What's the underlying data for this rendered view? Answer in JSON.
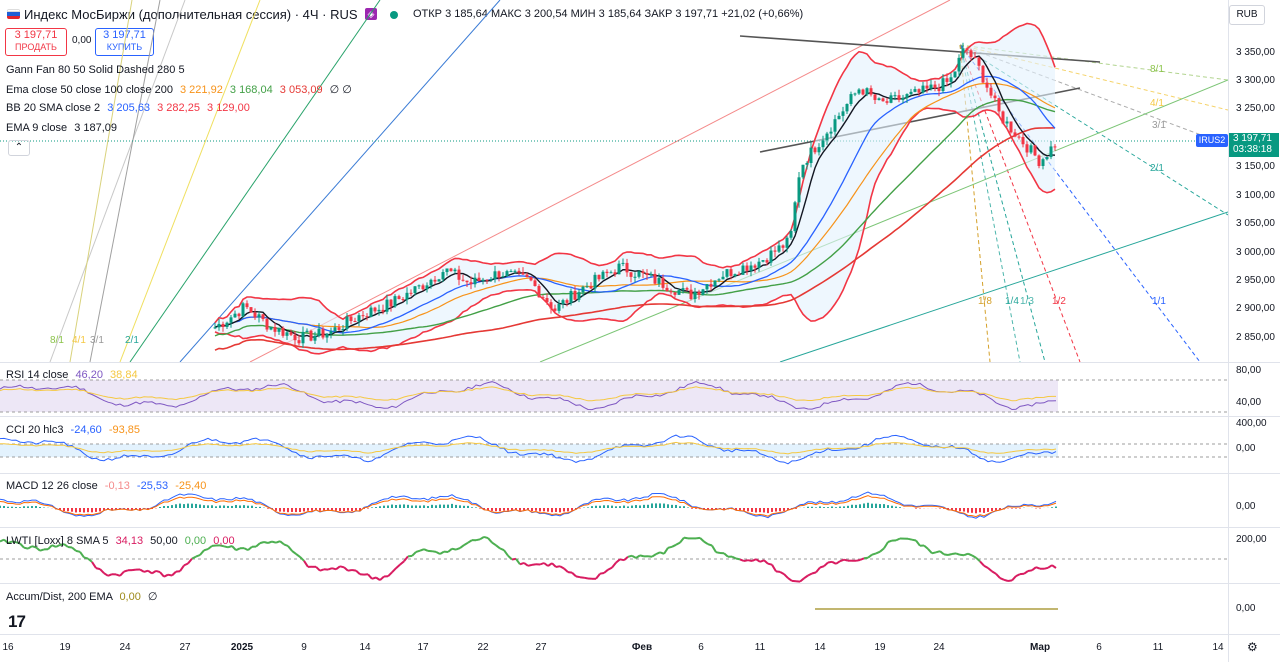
{
  "header": {
    "title": "Индекс МосБиржи (дополнительная сессия) · 4Ч · RUS",
    "ohlc": "ОТКР 3 185,64  МАКС 3 200,54  МИН 3 185,64  ЗАКР 3 197,71 +21,02 (+0,66%)",
    "currency": "RUB"
  },
  "trade": {
    "sell_price": "3 197,71",
    "sell_label": "ПРОДАТЬ",
    "spread": "0,00",
    "buy_price": "3 197,71",
    "buy_label": "КУПИТЬ"
  },
  "indicators": {
    "gann": "Gann Fan 80 50 Solid Dashed 280 5",
    "ema_label": "Ema close 50 close 100 close 200",
    "ema_v1": "3 221,92",
    "ema_v2": "3 168,04",
    "ema_v3": "3 053,09",
    "ema_tail": "∅ ∅",
    "bb_label": "BB 20 SMA close 2",
    "bb_v1": "3 205,63",
    "bb_v2": "3 282,25",
    "bb_v3": "3 129,00",
    "ema9_label": "EMA 9 close",
    "ema9_v": "3 187,09"
  },
  "price_tag": {
    "symbol": "IRUS2",
    "price": "3 197,71",
    "timer": "03:38:18"
  },
  "price_axis": [
    "3 350,00",
    "3 300,00",
    "3 250,00",
    "3 150,00",
    "3 100,00",
    "3 050,00",
    "3 000,00",
    "2 950,00",
    "2 900,00",
    "2 850,00"
  ],
  "gann_labels": {
    "top_right": [
      "8/1",
      "4/1",
      "3/1",
      "2/1",
      "1/1"
    ],
    "bottom": [
      "1/8",
      "1/4",
      "1/3",
      "1/2"
    ],
    "left": [
      "8/1",
      "4/1",
      "3/1",
      "2/1"
    ]
  },
  "panes": {
    "rsi": {
      "label": "RSI 14 close",
      "v1": "46,20",
      "v2": "38,84",
      "axis_top": "80,00",
      "axis_bottom": "40,00"
    },
    "cci": {
      "label": "CCI 20 hlc3",
      "v1": "-24,60",
      "v2": "-93,85",
      "axis_top": "400,00",
      "axis_bottom": "0,00"
    },
    "macd": {
      "label": "MACD 12 26 close",
      "v1": "-0,13",
      "v2": "-25,53",
      "v3": "-25,40",
      "axis": "0,00"
    },
    "lwti": {
      "label": "LWTI [Loxx] 8 SMA 5",
      "v1": "34,13",
      "v2": "50,00",
      "v3": "0,00",
      "v4": "0,00",
      "axis": "200,00"
    },
    "accum": {
      "label": "Accum/Dist, 200 EMA",
      "v1": "0,00",
      "v2": "∅",
      "axis": "0,00"
    }
  },
  "time_axis": [
    "16",
    "19",
    "24",
    "27",
    "2025",
    "9",
    "14",
    "17",
    "22",
    "27",
    "Фев",
    "6",
    "11",
    "14",
    "19",
    "24",
    "Мар",
    "6",
    "11",
    "14"
  ],
  "colors": {
    "bull": "#089981",
    "bear": "#f23645",
    "ema9": "#131722",
    "ema50": "#f7931a",
    "ema100": "#43a047",
    "ema200": "#e53935",
    "bb_mid": "#2962ff",
    "bb_band": "#f23645",
    "bb_fill": "#e3f2fd",
    "rsi": "#7e57c2",
    "macd_line": "#2962ff",
    "macd_signal": "#ff6d00",
    "lwti_up": "#4caf50",
    "lwti_down": "#d81b60"
  }
}
